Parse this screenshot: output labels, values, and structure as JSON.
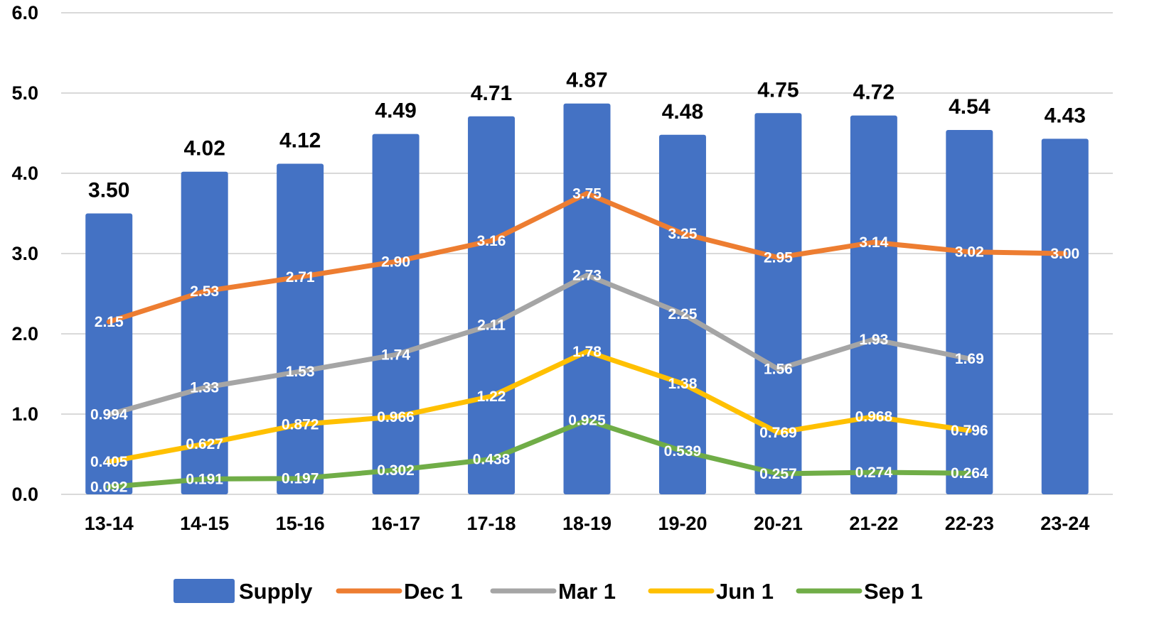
{
  "chart_data": {
    "type": "bar",
    "categories": [
      "13-14",
      "14-15",
      "15-16",
      "16-17",
      "17-18",
      "18-19",
      "19-20",
      "20-21",
      "21-22",
      "22-23",
      "23-24"
    ],
    "ylim": [
      0,
      6
    ],
    "yticks": [
      "0.0",
      "1.0",
      "2.0",
      "3.0",
      "4.0",
      "5.0",
      "6.0"
    ],
    "grid": true,
    "legend_position": "bottom",
    "bar_series": {
      "name": "Supply",
      "color": "#4472C4",
      "values": [
        3.5,
        4.02,
        4.12,
        4.49,
        4.71,
        4.87,
        4.48,
        4.75,
        4.72,
        4.54,
        4.43
      ],
      "labels": [
        "3.50",
        "4.02",
        "4.12",
        "4.49",
        "4.71",
        "4.87",
        "4.48",
        "4.75",
        "4.72",
        "4.54",
        "4.43"
      ]
    },
    "line_series": [
      {
        "name": "Dec 1",
        "color": "#ED7D31",
        "values": [
          2.15,
          2.53,
          2.71,
          2.9,
          3.16,
          3.75,
          3.25,
          2.95,
          3.14,
          3.02,
          3.0
        ],
        "labels": [
          "2.15",
          "2.53",
          "2.71",
          "2.90",
          "3.16",
          "3.75",
          "3.25",
          "2.95",
          "3.14",
          "3.02",
          "3.00"
        ]
      },
      {
        "name": "Mar 1",
        "color": "#A5A5A5",
        "values": [
          0.994,
          1.33,
          1.53,
          1.74,
          2.11,
          2.73,
          2.25,
          1.56,
          1.93,
          1.69,
          null
        ],
        "labels": [
          "0.994",
          "1.33",
          "1.53",
          "1.74",
          "2.11",
          "2.73",
          "2.25",
          "1.56",
          "1.93",
          "1.69",
          null
        ]
      },
      {
        "name": "Jun 1",
        "color": "#FFC000",
        "values": [
          0.405,
          0.627,
          0.872,
          0.966,
          1.22,
          1.78,
          1.38,
          0.769,
          0.968,
          0.796,
          null
        ],
        "labels": [
          "0.405",
          "0.627",
          "0.872",
          "0.966",
          "1.22",
          "1.78",
          "1.38",
          "0.769",
          "0.968",
          "0.796",
          null
        ]
      },
      {
        "name": "Sep 1",
        "color": "#70AD47",
        "values": [
          0.092,
          0.191,
          0.197,
          0.302,
          0.438,
          0.925,
          0.539,
          0.257,
          0.274,
          0.264,
          null
        ],
        "labels": [
          "0.092",
          "0.191",
          "0.197",
          "0.302",
          "0.438",
          "0.925",
          "0.539",
          "0.257",
          "0.274",
          "0.264",
          null
        ]
      }
    ]
  }
}
